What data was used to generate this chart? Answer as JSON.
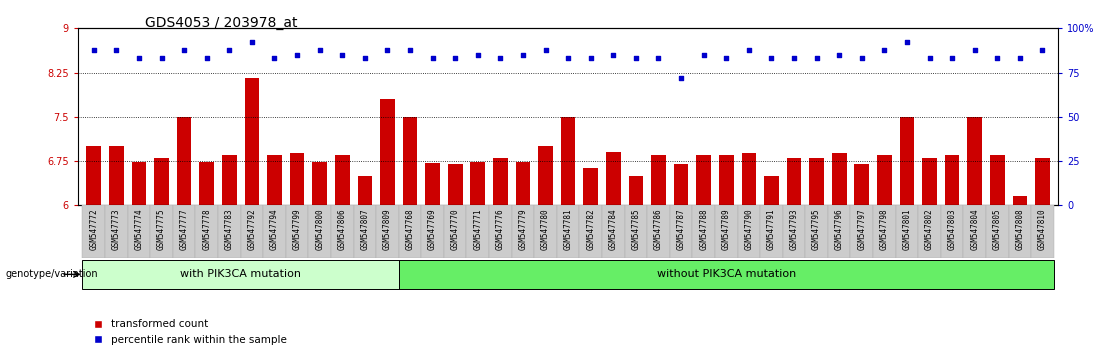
{
  "title": "GDS4053 / 203978_at",
  "samples": [
    "GSM547772",
    "GSM547773",
    "GSM547774",
    "GSM547775",
    "GSM547777",
    "GSM547778",
    "GSM547783",
    "GSM547792",
    "GSM547794",
    "GSM547799",
    "GSM547800",
    "GSM547806",
    "GSM547807",
    "GSM547809",
    "GSM547768",
    "GSM547769",
    "GSM547770",
    "GSM547771",
    "GSM547776",
    "GSM547779",
    "GSM547780",
    "GSM547781",
    "GSM547782",
    "GSM547784",
    "GSM547785",
    "GSM547786",
    "GSM547787",
    "GSM547788",
    "GSM547789",
    "GSM547790",
    "GSM547791",
    "GSM547793",
    "GSM547795",
    "GSM547796",
    "GSM547797",
    "GSM547798",
    "GSM547801",
    "GSM547802",
    "GSM547803",
    "GSM547804",
    "GSM547805",
    "GSM547808",
    "GSM547810"
  ],
  "bar_values": [
    7.0,
    7.0,
    6.74,
    6.8,
    7.5,
    6.74,
    6.85,
    8.15,
    6.85,
    6.88,
    6.74,
    6.85,
    6.5,
    7.8,
    7.5,
    6.72,
    6.7,
    6.74,
    6.8,
    6.74,
    7.0,
    7.5,
    6.64,
    6.9,
    6.5,
    6.85,
    6.7,
    6.85,
    6.85,
    6.88,
    6.5,
    6.8,
    6.8,
    6.88,
    6.7,
    6.85,
    7.5,
    6.8,
    6.85,
    7.5,
    6.85,
    6.15,
    6.8
  ],
  "percentile_values": [
    88,
    88,
    83,
    83,
    88,
    83,
    88,
    92,
    83,
    85,
    88,
    85,
    83,
    88,
    88,
    83,
    83,
    85,
    83,
    85,
    88,
    83,
    83,
    85,
    83,
    83,
    72,
    85,
    83,
    88,
    83,
    83,
    83,
    85,
    83,
    88,
    92,
    83,
    83,
    88,
    83,
    83,
    88
  ],
  "group1_count": 14,
  "group2_count": 29,
  "group1_label": "with PIK3CA mutation",
  "group2_label": "without PIK3CA mutation",
  "bar_color": "#cc0000",
  "dot_color": "#0000cc",
  "ylim_left": [
    6,
    9
  ],
  "ylim_right": [
    0,
    100
  ],
  "yticks_left": [
    6,
    6.75,
    7.5,
    8.25,
    9
  ],
  "yticks_right": [
    0,
    25,
    50,
    75,
    100
  ],
  "hlines": [
    6.75,
    7.5,
    8.25
  ],
  "title_fontsize": 10,
  "tick_fontsize": 5.5,
  "legend_fontsize": 7.5,
  "group_label_fontsize": 8,
  "group1_color": "#ccffcc",
  "group2_color": "#66ee66",
  "group_label_color": "#000000",
  "genotype_label": "genotype/variation"
}
